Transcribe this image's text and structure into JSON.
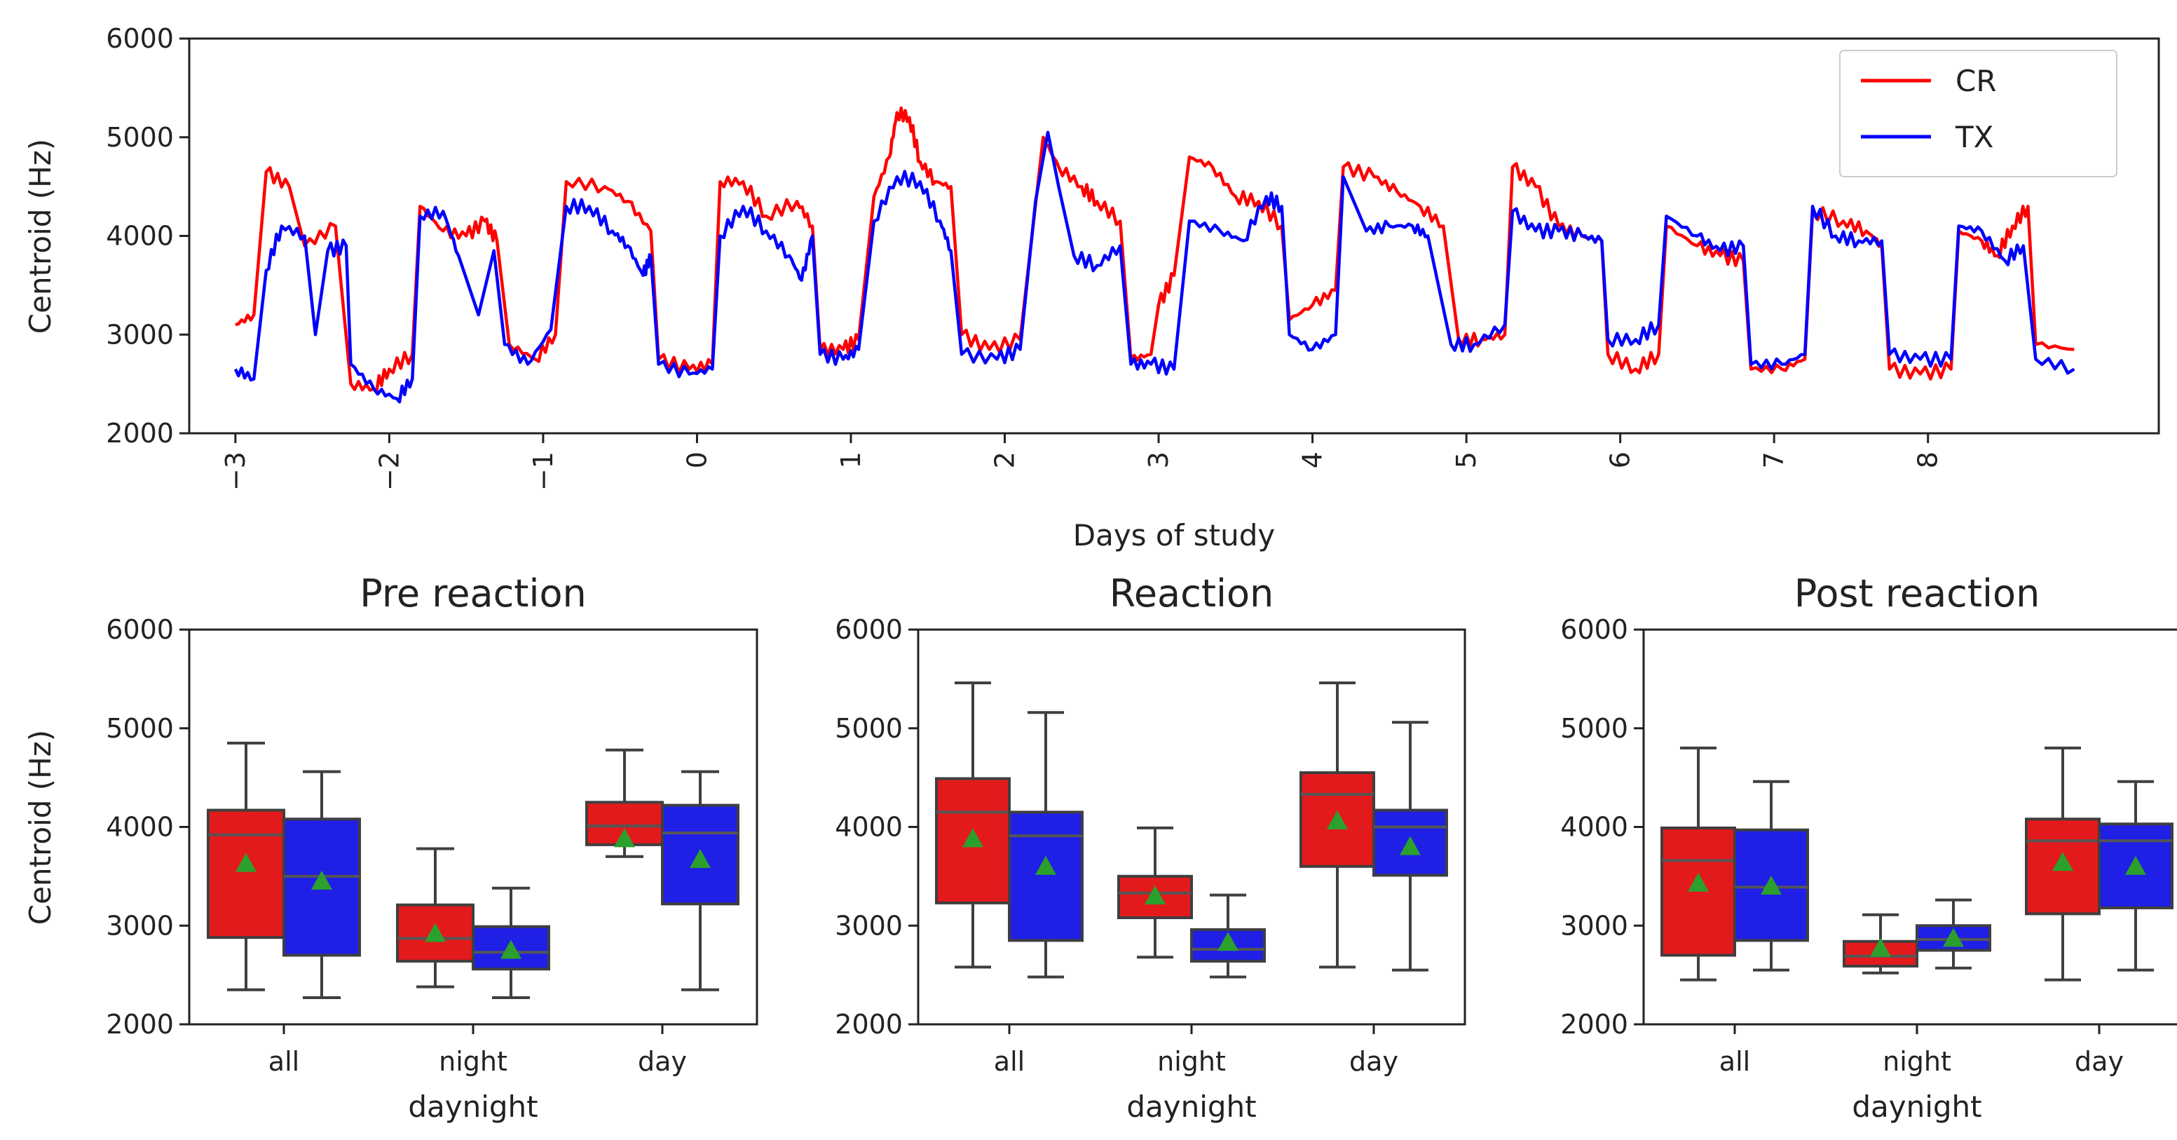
{
  "colors": {
    "CR": "#ff0000",
    "TX": "#0000ff",
    "CR_box": "#e31a1c",
    "TX_box": "#1f1fe6",
    "mean": "#2ca02c",
    "axis": "#222222"
  },
  "chart_data": [
    {
      "type": "line",
      "xlabel": "Days of study",
      "ylabel": "Centroid (Hz)",
      "xlim": [
        -3.3,
        9.5
      ],
      "ylim": [
        2000,
        6000
      ],
      "xticks": [
        "−3",
        "−2",
        "−1",
        "0",
        "1",
        "2",
        "3",
        "4",
        "5",
        "6",
        "7",
        "8"
      ],
      "yticks": [
        "2000",
        "3000",
        "4000",
        "5000",
        "6000"
      ],
      "legend": {
        "position": "top-right",
        "entries": [
          "CR",
          "TX"
        ]
      },
      "series": [
        {
          "name": "CR",
          "points": [
            [
              -3.0,
              3100
            ],
            [
              -2.88,
              3200
            ],
            [
              -2.8,
              4650
            ],
            [
              -2.65,
              4500
            ],
            [
              -2.55,
              3900
            ],
            [
              -2.35,
              4100
            ],
            [
              -2.25,
              2500
            ],
            [
              -2.1,
              2450
            ],
            [
              -2.0,
              2650
            ],
            [
              -1.85,
              2800
            ],
            [
              -1.8,
              4300
            ],
            [
              -1.65,
              4050
            ],
            [
              -1.5,
              4000
            ],
            [
              -1.38,
              4150
            ],
            [
              -1.3,
              3950
            ],
            [
              -1.22,
              2900
            ],
            [
              -1.05,
              2750
            ],
            [
              -0.92,
              3000
            ],
            [
              -0.85,
              4550
            ],
            [
              -0.6,
              4500
            ],
            [
              -0.45,
              4350
            ],
            [
              -0.3,
              4050
            ],
            [
              -0.25,
              2750
            ],
            [
              -0.05,
              2650
            ],
            [
              0.1,
              2700
            ],
            [
              0.15,
              4550
            ],
            [
              0.3,
              4550
            ],
            [
              0.45,
              4200
            ],
            [
              0.65,
              4350
            ],
            [
              0.75,
              4100
            ],
            [
              0.8,
              2850
            ],
            [
              0.95,
              2850
            ],
            [
              1.05,
              2950
            ],
            [
              1.15,
              4400
            ],
            [
              1.25,
              4800
            ],
            [
              1.3,
              5250
            ],
            [
              1.38,
              5200
            ],
            [
              1.45,
              4750
            ],
            [
              1.55,
              4550
            ],
            [
              1.65,
              4500
            ],
            [
              1.72,
              3000
            ],
            [
              1.9,
              2850
            ],
            [
              2.1,
              2950
            ],
            [
              2.25,
              5000
            ],
            [
              2.35,
              4700
            ],
            [
              2.5,
              4500
            ],
            [
              2.6,
              4350
            ],
            [
              2.75,
              4150
            ],
            [
              2.82,
              2750
            ],
            [
              2.95,
              2800
            ],
            [
              3.0,
              3300
            ],
            [
              3.1,
              3600
            ],
            [
              3.2,
              4800
            ],
            [
              3.35,
              4700
            ],
            [
              3.5,
              4400
            ],
            [
              3.65,
              4350
            ],
            [
              3.8,
              4100
            ],
            [
              3.85,
              3150
            ],
            [
              4.0,
              3300
            ],
            [
              4.15,
              3450
            ],
            [
              4.2,
              4700
            ],
            [
              4.4,
              4600
            ],
            [
              4.55,
              4450
            ],
            [
              4.7,
              4300
            ],
            [
              4.85,
              4100
            ],
            [
              4.95,
              2950
            ],
            [
              5.1,
              2950
            ],
            [
              5.25,
              3000
            ],
            [
              5.3,
              4700
            ],
            [
              5.45,
              4500
            ],
            [
              5.6,
              4100
            ],
            [
              5.75,
              4000
            ],
            [
              5.88,
              3950
            ],
            [
              5.92,
              2800
            ],
            [
              6.1,
              2650
            ],
            [
              6.25,
              2800
            ],
            [
              6.3,
              4100
            ],
            [
              6.5,
              3900
            ],
            [
              6.65,
              3800
            ],
            [
              6.8,
              3750
            ],
            [
              6.85,
              2650
            ],
            [
              7.05,
              2650
            ],
            [
              7.2,
              2750
            ],
            [
              7.25,
              4250
            ],
            [
              7.45,
              4150
            ],
            [
              7.6,
              4050
            ],
            [
              7.7,
              3900
            ],
            [
              7.75,
              2650
            ],
            [
              7.95,
              2600
            ],
            [
              8.15,
              2650
            ],
            [
              8.2,
              4050
            ],
            [
              8.35,
              3950
            ],
            [
              8.45,
              3800
            ],
            [
              8.55,
              4100
            ],
            [
              8.65,
              4300
            ],
            [
              8.7,
              2900
            ],
            [
              8.95,
              2850
            ]
          ]
        },
        {
          "name": "TX",
          "points": [
            [
              -3.0,
              2650
            ],
            [
              -2.88,
              2550
            ],
            [
              -2.8,
              3650
            ],
            [
              -2.7,
              4100
            ],
            [
              -2.55,
              4000
            ],
            [
              -2.48,
              3000
            ],
            [
              -2.4,
              3850
            ],
            [
              -2.28,
              3900
            ],
            [
              -2.25,
              2700
            ],
            [
              -2.1,
              2450
            ],
            [
              -1.95,
              2350
            ],
            [
              -1.85,
              2550
            ],
            [
              -1.8,
              4200
            ],
            [
              -1.65,
              4250
            ],
            [
              -1.55,
              3800
            ],
            [
              -1.42,
              3200
            ],
            [
              -1.32,
              3850
            ],
            [
              -1.25,
              2900
            ],
            [
              -1.1,
              2700
            ],
            [
              -0.95,
              3050
            ],
            [
              -0.85,
              4300
            ],
            [
              -0.7,
              4300
            ],
            [
              -0.55,
              4050
            ],
            [
              -0.45,
              3900
            ],
            [
              -0.35,
              3600
            ],
            [
              -0.3,
              3800
            ],
            [
              -0.25,
              2700
            ],
            [
              -0.05,
              2600
            ],
            [
              0.1,
              2650
            ],
            [
              0.15,
              4000
            ],
            [
              0.3,
              4300
            ],
            [
              0.45,
              4050
            ],
            [
              0.6,
              3800
            ],
            [
              0.68,
              3550
            ],
            [
              0.75,
              4000
            ],
            [
              0.8,
              2800
            ],
            [
              0.95,
              2750
            ],
            [
              1.05,
              2850
            ],
            [
              1.15,
              4150
            ],
            [
              1.3,
              4600
            ],
            [
              1.45,
              4550
            ],
            [
              1.58,
              4150
            ],
            [
              1.65,
              3850
            ],
            [
              1.72,
              2800
            ],
            [
              1.95,
              2750
            ],
            [
              2.1,
              2850
            ],
            [
              2.2,
              4350
            ],
            [
              2.28,
              5050
            ],
            [
              2.35,
              4500
            ],
            [
              2.45,
              3800
            ],
            [
              2.6,
              3700
            ],
            [
              2.75,
              3900
            ],
            [
              2.82,
              2700
            ],
            [
              2.95,
              2700
            ],
            [
              3.1,
              2650
            ],
            [
              3.2,
              4150
            ],
            [
              3.4,
              4050
            ],
            [
              3.55,
              3950
            ],
            [
              3.7,
              4400
            ],
            [
              3.8,
              4300
            ],
            [
              3.85,
              3000
            ],
            [
              4.0,
              2850
            ],
            [
              4.15,
              3000
            ],
            [
              4.2,
              4600
            ],
            [
              4.35,
              4050
            ],
            [
              4.5,
              4100
            ],
            [
              4.65,
              4100
            ],
            [
              4.75,
              4000
            ],
            [
              4.9,
              2900
            ],
            [
              5.05,
              2900
            ],
            [
              5.25,
              3100
            ],
            [
              5.3,
              4250
            ],
            [
              5.45,
              4050
            ],
            [
              5.6,
              4050
            ],
            [
              5.75,
              4000
            ],
            [
              5.88,
              3950
            ],
            [
              5.92,
              2950
            ],
            [
              6.1,
              2950
            ],
            [
              6.25,
              3100
            ],
            [
              6.3,
              4200
            ],
            [
              6.5,
              4000
            ],
            [
              6.65,
              3850
            ],
            [
              6.8,
              3900
            ],
            [
              6.85,
              2700
            ],
            [
              7.05,
              2700
            ],
            [
              7.2,
              2800
            ],
            [
              7.25,
              4300
            ],
            [
              7.4,
              4000
            ],
            [
              7.55,
              3950
            ],
            [
              7.7,
              3950
            ],
            [
              7.75,
              2800
            ],
            [
              7.95,
              2750
            ],
            [
              8.15,
              2750
            ],
            [
              8.2,
              4100
            ],
            [
              8.35,
              4050
            ],
            [
              8.5,
              3750
            ],
            [
              8.62,
              3900
            ],
            [
              8.7,
              2750
            ],
            [
              8.95,
              2650
            ]
          ]
        }
      ]
    },
    {
      "type": "box",
      "title": "Pre reaction",
      "xlabel": "daynight",
      "ylabel": "Centroid (Hz)",
      "ylim": [
        2000,
        6000
      ],
      "yticks": [
        "2000",
        "3000",
        "4000",
        "5000",
        "6000"
      ],
      "categories": [
        "all",
        "night",
        "day"
      ],
      "series": [
        {
          "name": "CR",
          "boxes": [
            {
              "min": 2350,
              "q1": 2880,
              "median": 3920,
              "q3": 4170,
              "max": 4850,
              "mean": 3630
            },
            {
              "min": 2380,
              "q1": 2640,
              "median": 2870,
              "q3": 3210,
              "max": 3780,
              "mean": 2920
            },
            {
              "min": 3700,
              "q1": 3820,
              "median": 4010,
              "q3": 4250,
              "max": 4780,
              "mean": 3880
            }
          ]
        },
        {
          "name": "TX",
          "boxes": [
            {
              "min": 2270,
              "q1": 2700,
              "median": 3500,
              "q3": 4080,
              "max": 4560,
              "mean": 3450
            },
            {
              "min": 2270,
              "q1": 2560,
              "median": 2730,
              "q3": 2990,
              "max": 3380,
              "mean": 2750
            },
            {
              "min": 2350,
              "q1": 3220,
              "median": 3940,
              "q3": 4220,
              "max": 4560,
              "mean": 3670
            }
          ]
        }
      ]
    },
    {
      "type": "box",
      "title": "Reaction",
      "xlabel": "daynight",
      "ylabel": "",
      "ylim": [
        2000,
        6000
      ],
      "yticks": [
        "2000",
        "3000",
        "4000",
        "5000",
        "6000"
      ],
      "categories": [
        "all",
        "night",
        "day"
      ],
      "series": [
        {
          "name": "CR",
          "boxes": [
            {
              "min": 2580,
              "q1": 3230,
              "median": 4150,
              "q3": 4490,
              "max": 5460,
              "mean": 3880
            },
            {
              "min": 2680,
              "q1": 3080,
              "median": 3330,
              "q3": 3500,
              "max": 3990,
              "mean": 3300
            },
            {
              "min": 2580,
              "q1": 3600,
              "median": 4330,
              "q3": 4550,
              "max": 5460,
              "mean": 4060
            }
          ]
        },
        {
          "name": "TX",
          "boxes": [
            {
              "min": 2480,
              "q1": 2850,
              "median": 3910,
              "q3": 4150,
              "max": 5160,
              "mean": 3600
            },
            {
              "min": 2480,
              "q1": 2640,
              "median": 2760,
              "q3": 2960,
              "max": 3310,
              "mean": 2830
            },
            {
              "min": 2550,
              "q1": 3510,
              "median": 4000,
              "q3": 4170,
              "max": 5060,
              "mean": 3800
            }
          ]
        }
      ]
    },
    {
      "type": "box",
      "title": "Post reaction",
      "xlabel": "daynight",
      "ylabel": "",
      "ylim": [
        2000,
        6000
      ],
      "yticks": [
        "2000",
        "3000",
        "4000",
        "5000",
        "6000"
      ],
      "categories": [
        "all",
        "night",
        "day"
      ],
      "series": [
        {
          "name": "CR",
          "boxes": [
            {
              "min": 2450,
              "q1": 2700,
              "median": 3660,
              "q3": 3990,
              "max": 4800,
              "mean": 3430
            },
            {
              "min": 2520,
              "q1": 2590,
              "median": 2690,
              "q3": 2840,
              "max": 3110,
              "mean": 2770
            },
            {
              "min": 2450,
              "q1": 3120,
              "median": 3860,
              "q3": 4080,
              "max": 4800,
              "mean": 3640
            }
          ]
        },
        {
          "name": "TX",
          "boxes": [
            {
              "min": 2550,
              "q1": 2850,
              "median": 3390,
              "q3": 3970,
              "max": 4460,
              "mean": 3400
            },
            {
              "min": 2570,
              "q1": 2750,
              "median": 2860,
              "q3": 3000,
              "max": 3260,
              "mean": 2870
            },
            {
              "min": 2550,
              "q1": 3180,
              "median": 3860,
              "q3": 4030,
              "max": 4460,
              "mean": 3600
            }
          ]
        }
      ]
    }
  ]
}
